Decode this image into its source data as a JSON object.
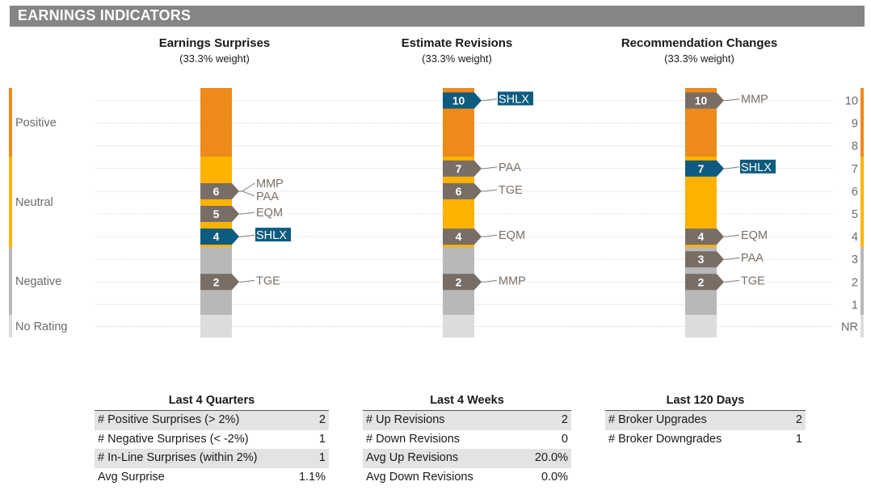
{
  "header": {
    "title": "EARNINGS INDICATORS"
  },
  "colors": {
    "positive": "#ee8a1a",
    "neutral": "#ffb300",
    "negative": "#b8b8b8",
    "no_rating": "#dcdcdc",
    "marker_gray": "#796e66",
    "marker_highlight": "#0d5b7f",
    "label_gray": "#7a7068",
    "header_bg": "#858585"
  },
  "chart_data": {
    "type": "scatter",
    "bands": [
      "Positive",
      "Neutral",
      "Negative",
      "No Rating"
    ],
    "scale_labels": [
      "10",
      "9",
      "8",
      "7",
      "6",
      "5",
      "4",
      "3",
      "2",
      "1",
      "NR"
    ],
    "highlight_ticker": "SHLX",
    "panels": [
      {
        "title": "Earnings Surprises",
        "subtitle": "(33.3% weight)",
        "markers": [
          {
            "value": 6,
            "tickers": [
              "MMP",
              "PAA"
            ]
          },
          {
            "value": 5,
            "tickers": [
              "EQM"
            ]
          },
          {
            "value": 4,
            "tickers": [
              "SHLX"
            ]
          },
          {
            "value": 2,
            "tickers": [
              "TGE"
            ]
          }
        ]
      },
      {
        "title": "Estimate Revisions",
        "subtitle": "(33.3% weight)",
        "markers": [
          {
            "value": 10,
            "tickers": [
              "SHLX"
            ]
          },
          {
            "value": 7,
            "tickers": [
              "PAA"
            ]
          },
          {
            "value": 6,
            "tickers": [
              "TGE"
            ]
          },
          {
            "value": 4,
            "tickers": [
              "EQM"
            ]
          },
          {
            "value": 2,
            "tickers": [
              "MMP"
            ]
          }
        ]
      },
      {
        "title": "Recommendation Changes",
        "subtitle": "(33.3% weight)",
        "markers": [
          {
            "value": 10,
            "tickers": [
              "MMP"
            ]
          },
          {
            "value": 7,
            "tickers": [
              "SHLX"
            ]
          },
          {
            "value": 4,
            "tickers": [
              "EQM"
            ]
          },
          {
            "value": 3,
            "tickers": [
              "PAA"
            ]
          },
          {
            "value": 2,
            "tickers": [
              "TGE"
            ]
          }
        ]
      }
    ]
  },
  "tables": {
    "quarters": {
      "title": "Last 4 Quarters",
      "rows": [
        {
          "label": "# Positive Surprises (> 2%)",
          "value": "2"
        },
        {
          "label": "# Negative Surprises (< -2%)",
          "value": "1"
        },
        {
          "label": "# In-Line Surprises (within 2%)",
          "value": "1"
        },
        {
          "label": "Avg Surprise",
          "value": "1.1%"
        }
      ]
    },
    "weeks": {
      "title": "Last 4 Weeks",
      "rows": [
        {
          "label": "# Up Revisions",
          "value": "2"
        },
        {
          "label": "# Down Revisions",
          "value": "0"
        },
        {
          "label": "Avg Up Revisions",
          "value": "20.0%"
        },
        {
          "label": "Avg Down Revisions",
          "value": "0.0%"
        }
      ]
    },
    "days": {
      "title": "Last 120 Days",
      "rows": [
        {
          "label": "# Broker Upgrades",
          "value": "2"
        },
        {
          "label": "# Broker Downgrades",
          "value": "1"
        }
      ]
    }
  }
}
